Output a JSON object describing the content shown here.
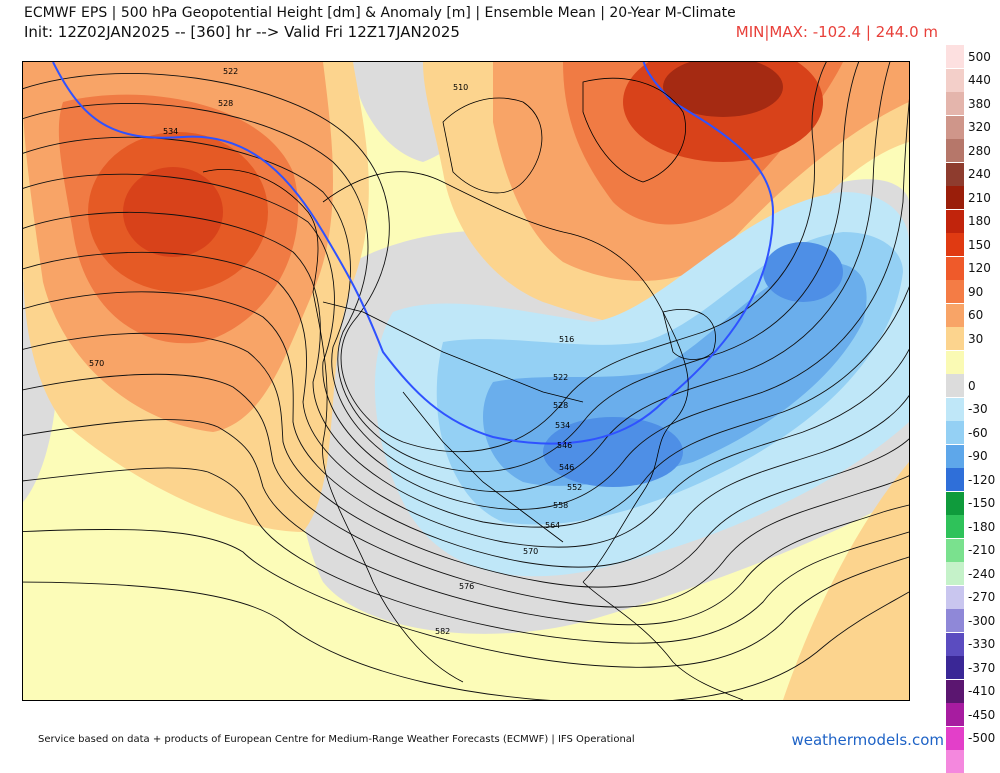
{
  "header": {
    "title": "ECMWF EPS | 500 hPa Geopotential Height [dm] & Anomaly [m] | Ensemble Mean | 20-Year M-Climate",
    "init": "Init: 12Z02JAN2025 -- [360] hr --> Valid Fri 12Z17JAN2025",
    "minmax": "MIN|MAX: -102.4 | 244.0 m"
  },
  "legend": {
    "entries": [
      {
        "label": "500",
        "color": "#fde0e0"
      },
      {
        "label": "440",
        "color": "#f3cfc9"
      },
      {
        "label": "380",
        "color": "#e4b5ac"
      },
      {
        "label": "320",
        "color": "#cf968a"
      },
      {
        "label": "280",
        "color": "#b6776a"
      },
      {
        "label": "240",
        "color": "#8e3c2e"
      },
      {
        "label": "210",
        "color": "#9a1e0a"
      },
      {
        "label": "180",
        "color": "#c1240c"
      },
      {
        "label": "150",
        "color": "#e03a12"
      },
      {
        "label": "120",
        "color": "#ef5a2a"
      },
      {
        "label": "90",
        "color": "#f47c45"
      },
      {
        "label": "60",
        "color": "#f8a467"
      },
      {
        "label": "30",
        "color": "#fcd48e"
      },
      {
        "label": "",
        "color": "#fafab4"
      },
      {
        "label": "0",
        "color": "#dcdcdc"
      },
      {
        "label": "-30",
        "color": "#bfe7f8"
      },
      {
        "label": "-60",
        "color": "#94d0f4"
      },
      {
        "label": "-90",
        "color": "#5ea7ea"
      },
      {
        "label": "-120",
        "color": "#2f6fd9"
      },
      {
        "label": "-150",
        "color": "#0f9b3c"
      },
      {
        "label": "-180",
        "color": "#2fc25a"
      },
      {
        "label": "-210",
        "color": "#7ae18e"
      },
      {
        "label": "-240",
        "color": "#c5f2c9"
      },
      {
        "label": "-270",
        "color": "#c9c6ef"
      },
      {
        "label": "-300",
        "color": "#8f88d8"
      },
      {
        "label": "-330",
        "color": "#5b4cc0"
      },
      {
        "label": "-370",
        "color": "#3a2796"
      },
      {
        "label": "-410",
        "color": "#5b1670"
      },
      {
        "label": "-450",
        "color": "#a71ca0"
      },
      {
        "label": "-500",
        "color": "#e33fc9"
      },
      {
        "label": "",
        "color": "#f488de"
      }
    ]
  },
  "map": {
    "contour_labels": [
      "510",
      "516",
      "522",
      "528",
      "534",
      "540",
      "546",
      "552",
      "558",
      "564",
      "570",
      "576",
      "582"
    ],
    "colors": {
      "positive_strong": "#d8421a",
      "positive_mid": "#f07b44",
      "positive_light": "#f8a467",
      "positive_pale": "#fcd48e",
      "neutral": "#dcdcdc",
      "background": "#fcfcb8",
      "negative_pale": "#bfe7f8",
      "negative_mid": "#94d0f4",
      "negative_strong": "#4e8fe6",
      "line_540": "#2f52ff"
    }
  },
  "footer": {
    "attribution": "Service based on data + products of European Centre for Medium-Range Weather Forecasts (ECMWF) | IFS Operational",
    "brand": "weathermodels.com"
  }
}
